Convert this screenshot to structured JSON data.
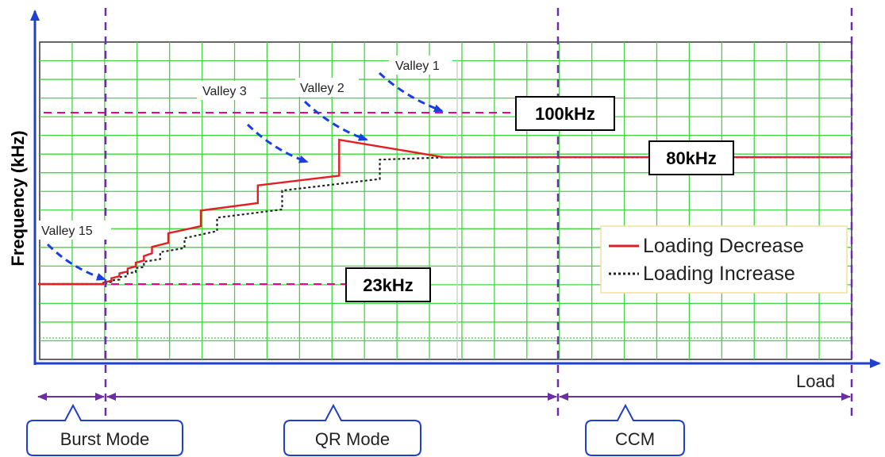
{
  "chart_data": {
    "type": "line",
    "title": "",
    "xlabel": "Load",
    "ylabel": "Frequency (kHz)",
    "grid": true,
    "legend_position": "right",
    "series": [
      {
        "name": "Loading Decrease",
        "color": "#e31e24",
        "style": "solid",
        "points": [
          [
            0,
            23
          ],
          [
            8,
            23
          ],
          [
            8,
            23.6
          ],
          [
            9,
            24.5
          ],
          [
            9,
            25.6
          ],
          [
            10,
            26.5
          ],
          [
            10,
            27.8
          ],
          [
            11,
            28.6
          ],
          [
            11,
            30.0
          ],
          [
            12,
            30.9
          ],
          [
            12,
            32.6
          ],
          [
            13,
            33.6
          ],
          [
            13,
            35.6
          ],
          [
            14,
            36.8
          ],
          [
            14,
            39.7
          ],
          [
            16,
            41.5
          ],
          [
            16,
            45.8
          ],
          [
            20,
            49.0
          ],
          [
            20,
            56.0
          ],
          [
            27,
            59.4
          ],
          [
            27,
            67.3
          ],
          [
            37,
            71.7
          ],
          [
            37,
            87.8
          ],
          [
            50,
            79.9
          ],
          [
            63,
            80
          ],
          [
            100,
            80
          ]
        ]
      },
      {
        "name": "Loading Increase",
        "color": "#222222",
        "style": "dotted",
        "points": [
          [
            0,
            23
          ],
          [
            8,
            23
          ],
          [
            9,
            24
          ],
          [
            9,
            24.6
          ],
          [
            10,
            25
          ],
          [
            10,
            26.1
          ],
          [
            11,
            26.5
          ],
          [
            11,
            27.9
          ],
          [
            12,
            28.3
          ],
          [
            12,
            30.2
          ],
          [
            13,
            30.6
          ],
          [
            13,
            33.0
          ],
          [
            15,
            34.2
          ],
          [
            15,
            37.3
          ],
          [
            18,
            39.2
          ],
          [
            18,
            43.6
          ],
          [
            22,
            46.8
          ],
          [
            22,
            52.8
          ],
          [
            30,
            56.5
          ],
          [
            30,
            65.0
          ],
          [
            42,
            70.2
          ],
          [
            42,
            78.9
          ],
          [
            50,
            79.9
          ],
          [
            63,
            80
          ],
          [
            100,
            80
          ]
        ]
      }
    ],
    "reference_lines": [
      {
        "value": 100,
        "label": "100kHz",
        "color": "#ec008c"
      },
      {
        "value": 80,
        "label": "80kHz"
      },
      {
        "value": 23,
        "label": "23kHz",
        "color": "#ec008c"
      }
    ],
    "annotations": [
      "Valley 1",
      "Valley 2",
      "Valley 3",
      "Valley 15"
    ],
    "regions": [
      "Burst Mode",
      "QR Mode",
      "CCM"
    ]
  }
}
